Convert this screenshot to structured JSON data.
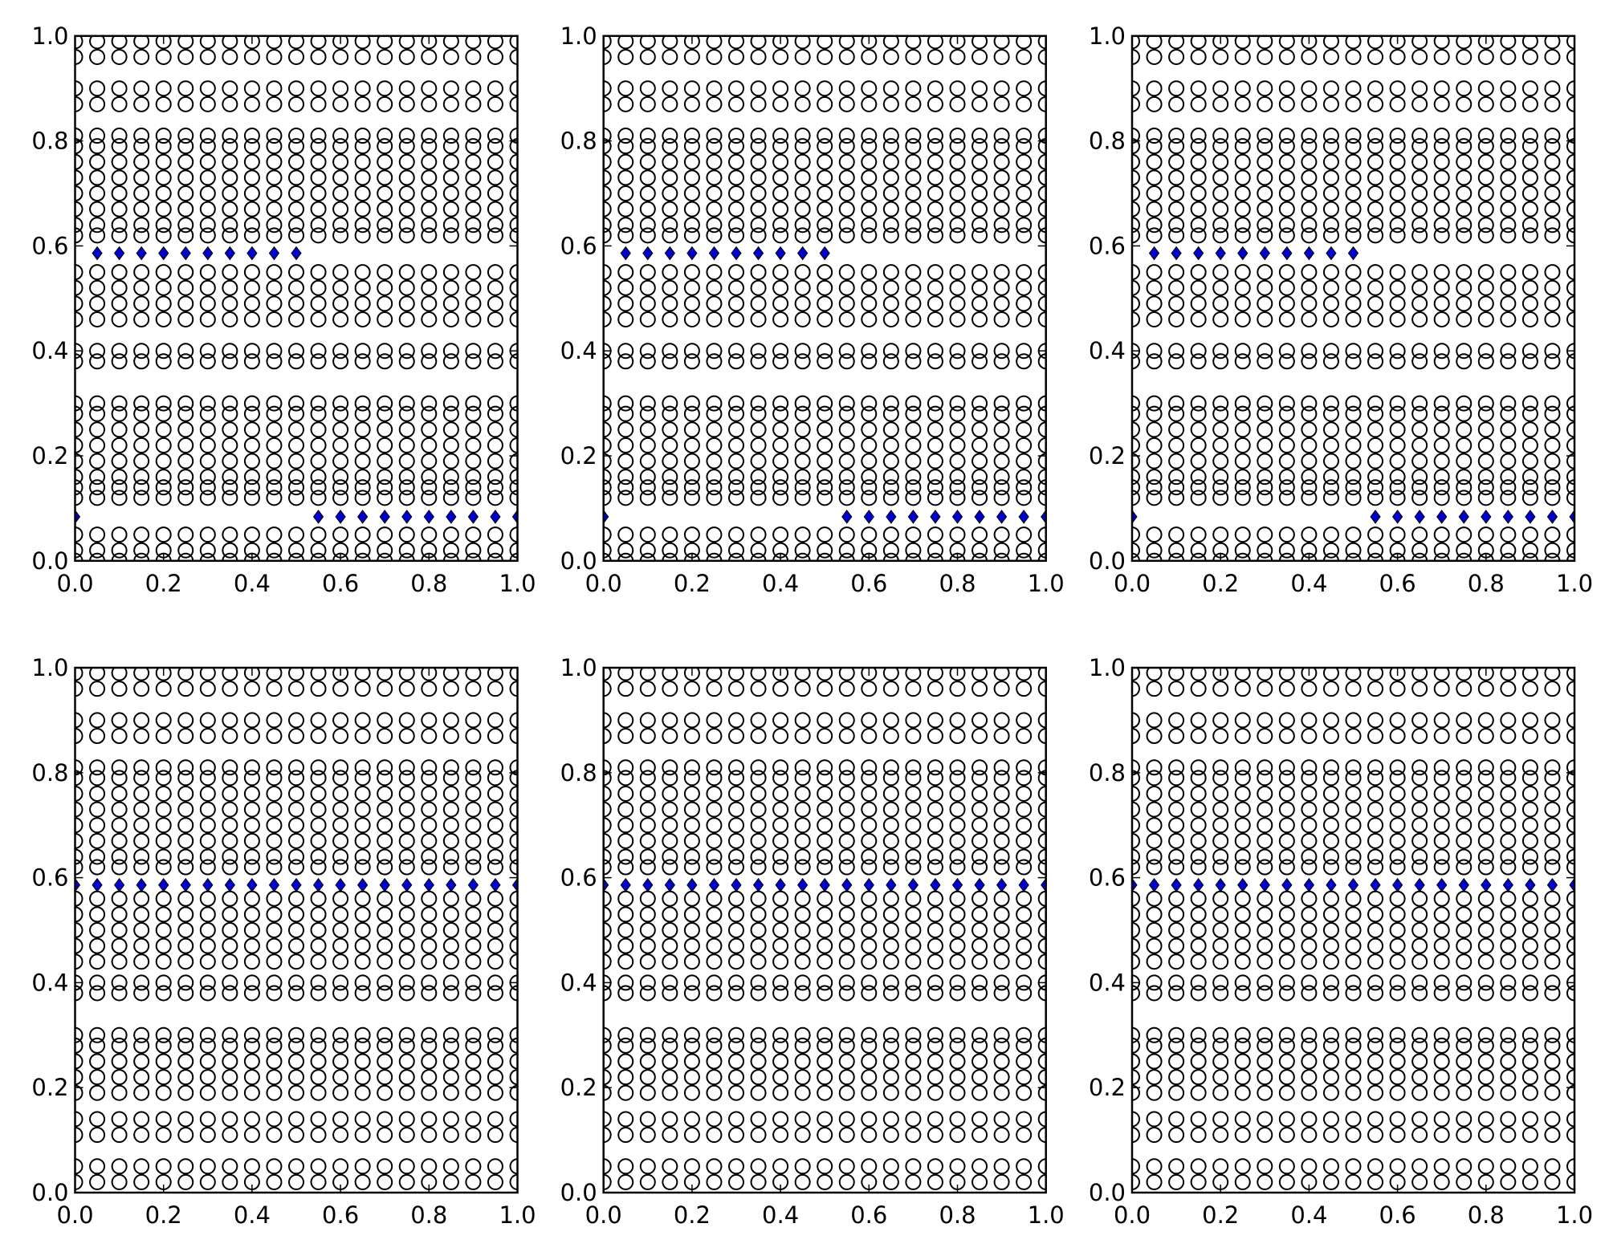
{
  "chart_data": [
    {
      "type": "scatter",
      "xlim": [
        0,
        1
      ],
      "ylim": [
        0,
        1
      ],
      "xticks": [
        {
          "value": 0,
          "label": "0.0"
        },
        {
          "value": 0.2,
          "label": "0.2"
        },
        {
          "value": 0.4,
          "label": "0.4"
        },
        {
          "value": 0.6,
          "label": "0.6"
        },
        {
          "value": 0.8,
          "label": "0.8"
        },
        {
          "value": 1,
          "label": "1.0"
        }
      ],
      "yticks": [
        {
          "value": 0,
          "label": "0.0"
        },
        {
          "value": 0.2,
          "label": "0.2"
        },
        {
          "value": 0.4,
          "label": "0.4"
        },
        {
          "value": 0.6,
          "label": "0.6"
        },
        {
          "value": 0.8,
          "label": "0.8"
        },
        {
          "value": 1,
          "label": "1.0"
        }
      ],
      "x": [
        0,
        0.05,
        0.1,
        0.15,
        0.2,
        0.25,
        0.3,
        0.35,
        0.4,
        0.45,
        0.5,
        0.55,
        0.6,
        0.65,
        0.7,
        0.75,
        0.8,
        0.85,
        0.9,
        0.95,
        1
      ],
      "rows": [
        0.99,
        0.96,
        0.9,
        0.87,
        0.81,
        0.79,
        0.76,
        0.73,
        0.7,
        0.67,
        0.64,
        0.62,
        0.55,
        0.52,
        0.49,
        0.46,
        0.4,
        0.38,
        0.3,
        0.28,
        0.25,
        0.22,
        0.19,
        0.16,
        0.14,
        0.12,
        0.05,
        0.02,
        0
      ],
      "series": [
        {
          "marker": "diamond",
          "color": "#0000cc",
          "x": [
            0.05,
            0.1,
            0.15,
            0.2,
            0.25,
            0.3,
            0.35,
            0.4,
            0.45,
            0.5,
            0,
            0.55,
            0.6,
            0.65,
            0.7,
            0.75,
            0.8,
            0.85,
            0.9,
            0.95,
            1
          ],
          "values": [
            0.586,
            0.586,
            0.586,
            0.586,
            0.586,
            0.586,
            0.586,
            0.586,
            0.586,
            0.586,
            0.084,
            0.084,
            0.084,
            0.084,
            0.084,
            0.084,
            0.084,
            0.084,
            0.084,
            0.084,
            0.084
          ]
        }
      ]
    },
    {
      "type": "scatter",
      "xlim": [
        0,
        1
      ],
      "ylim": [
        0,
        1
      ],
      "xticks": [
        {
          "value": 0,
          "label": "0.0"
        },
        {
          "value": 0.2,
          "label": "0.2"
        },
        {
          "value": 0.4,
          "label": "0.4"
        },
        {
          "value": 0.6,
          "label": "0.6"
        },
        {
          "value": 0.8,
          "label": "0.8"
        },
        {
          "value": 1,
          "label": "1.0"
        }
      ],
      "yticks": [
        {
          "value": 0,
          "label": "0.0"
        },
        {
          "value": 0.2,
          "label": "0.2"
        },
        {
          "value": 0.4,
          "label": "0.4"
        },
        {
          "value": 0.6,
          "label": "0.6"
        },
        {
          "value": 0.8,
          "label": "0.8"
        },
        {
          "value": 1,
          "label": "1.0"
        }
      ],
      "x": [
        0,
        0.05,
        0.1,
        0.15,
        0.2,
        0.25,
        0.3,
        0.35,
        0.4,
        0.45,
        0.5,
        0.55,
        0.6,
        0.65,
        0.7,
        0.75,
        0.8,
        0.85,
        0.9,
        0.95,
        1
      ],
      "rows": [
        0.99,
        0.96,
        0.9,
        0.87,
        0.81,
        0.79,
        0.76,
        0.73,
        0.7,
        0.67,
        0.64,
        0.62,
        0.55,
        0.52,
        0.49,
        0.46,
        0.4,
        0.38,
        0.3,
        0.28,
        0.25,
        0.22,
        0.19,
        0.16,
        0.14,
        0.12,
        0.05,
        0.02,
        0
      ],
      "series": [
        {
          "marker": "diamond",
          "color": "#0000cc",
          "x": [
            0.05,
            0.1,
            0.15,
            0.2,
            0.25,
            0.3,
            0.35,
            0.4,
            0.45,
            0.5,
            0,
            0.55,
            0.6,
            0.65,
            0.7,
            0.75,
            0.8,
            0.85,
            0.9,
            0.95,
            1
          ],
          "values": [
            0.586,
            0.586,
            0.586,
            0.586,
            0.586,
            0.586,
            0.586,
            0.586,
            0.586,
            0.586,
            0.084,
            0.084,
            0.084,
            0.084,
            0.084,
            0.084,
            0.084,
            0.084,
            0.084,
            0.084,
            0.084
          ]
        }
      ]
    },
    {
      "type": "scatter",
      "xlim": [
        0,
        1
      ],
      "ylim": [
        0,
        1
      ],
      "xticks": [
        {
          "value": 0,
          "label": "0.0"
        },
        {
          "value": 0.2,
          "label": "0.2"
        },
        {
          "value": 0.4,
          "label": "0.4"
        },
        {
          "value": 0.6,
          "label": "0.6"
        },
        {
          "value": 0.8,
          "label": "0.8"
        },
        {
          "value": 1,
          "label": "1.0"
        }
      ],
      "yticks": [
        {
          "value": 0,
          "label": "0.0"
        },
        {
          "value": 0.2,
          "label": "0.2"
        },
        {
          "value": 0.4,
          "label": "0.4"
        },
        {
          "value": 0.6,
          "label": "0.6"
        },
        {
          "value": 0.8,
          "label": "0.8"
        },
        {
          "value": 1,
          "label": "1.0"
        }
      ],
      "x": [
        0,
        0.05,
        0.1,
        0.15,
        0.2,
        0.25,
        0.3,
        0.35,
        0.4,
        0.45,
        0.5,
        0.55,
        0.6,
        0.65,
        0.7,
        0.75,
        0.8,
        0.85,
        0.9,
        0.95,
        1
      ],
      "rows": [
        0.99,
        0.96,
        0.9,
        0.87,
        0.81,
        0.79,
        0.76,
        0.73,
        0.7,
        0.67,
        0.64,
        0.62,
        0.55,
        0.52,
        0.49,
        0.46,
        0.4,
        0.38,
        0.3,
        0.28,
        0.25,
        0.22,
        0.19,
        0.16,
        0.14,
        0.12,
        0.05,
        0.02,
        0
      ],
      "series": [
        {
          "marker": "diamond",
          "color": "#0000cc",
          "x": [
            0.05,
            0.1,
            0.15,
            0.2,
            0.25,
            0.3,
            0.35,
            0.4,
            0.45,
            0.5,
            0,
            0.55,
            0.6,
            0.65,
            0.7,
            0.75,
            0.8,
            0.85,
            0.9,
            0.95,
            1
          ],
          "values": [
            0.586,
            0.586,
            0.586,
            0.586,
            0.586,
            0.586,
            0.586,
            0.586,
            0.586,
            0.586,
            0.084,
            0.084,
            0.084,
            0.084,
            0.084,
            0.084,
            0.084,
            0.084,
            0.084,
            0.084,
            0.084
          ]
        }
      ]
    },
    {
      "type": "scatter",
      "xlim": [
        0,
        1
      ],
      "ylim": [
        0,
        1
      ],
      "xticks": [
        {
          "value": 0,
          "label": "0.0"
        },
        {
          "value": 0.2,
          "label": "0.2"
        },
        {
          "value": 0.4,
          "label": "0.4"
        },
        {
          "value": 0.6,
          "label": "0.6"
        },
        {
          "value": 0.8,
          "label": "0.8"
        },
        {
          "value": 1,
          "label": "1.0"
        }
      ],
      "yticks": [
        {
          "value": 0,
          "label": "0.0"
        },
        {
          "value": 0.2,
          "label": "0.2"
        },
        {
          "value": 0.4,
          "label": "0.4"
        },
        {
          "value": 0.6,
          "label": "0.6"
        },
        {
          "value": 0.8,
          "label": "0.8"
        },
        {
          "value": 1,
          "label": "1.0"
        }
      ],
      "x": [
        0,
        0.05,
        0.1,
        0.15,
        0.2,
        0.25,
        0.3,
        0.35,
        0.4,
        0.45,
        0.5,
        0.55,
        0.6,
        0.65,
        0.7,
        0.75,
        0.8,
        0.85,
        0.9,
        0.95,
        1
      ],
      "rows": [
        0.99,
        0.96,
        0.9,
        0.87,
        0.81,
        0.79,
        0.76,
        0.73,
        0.7,
        0.67,
        0.64,
        0.62,
        0.56,
        0.53,
        0.5,
        0.47,
        0.44,
        0.4,
        0.38,
        0.3,
        0.28,
        0.25,
        0.22,
        0.19,
        0.14,
        0.11,
        0.05,
        0.02
      ],
      "series": [
        {
          "marker": "diamond",
          "color": "#0000cc",
          "x": [
            0,
            0.05,
            0.1,
            0.15,
            0.2,
            0.25,
            0.3,
            0.35,
            0.4,
            0.45,
            0.5,
            0.55,
            0.6,
            0.65,
            0.7,
            0.75,
            0.8,
            0.85,
            0.9,
            0.95,
            1
          ],
          "values": [
            0.586,
            0.586,
            0.586,
            0.586,
            0.586,
            0.586,
            0.586,
            0.586,
            0.586,
            0.586,
            0.586,
            0.586,
            0.586,
            0.586,
            0.586,
            0.586,
            0.586,
            0.586,
            0.586,
            0.586,
            0.586
          ]
        }
      ]
    },
    {
      "type": "scatter",
      "xlim": [
        0,
        1
      ],
      "ylim": [
        0,
        1
      ],
      "xticks": [
        {
          "value": 0,
          "label": "0.0"
        },
        {
          "value": 0.2,
          "label": "0.2"
        },
        {
          "value": 0.4,
          "label": "0.4"
        },
        {
          "value": 0.6,
          "label": "0.6"
        },
        {
          "value": 0.8,
          "label": "0.8"
        },
        {
          "value": 1,
          "label": "1.0"
        }
      ],
      "yticks": [
        {
          "value": 0,
          "label": "0.0"
        },
        {
          "value": 0.2,
          "label": "0.2"
        },
        {
          "value": 0.4,
          "label": "0.4"
        },
        {
          "value": 0.6,
          "label": "0.6"
        },
        {
          "value": 0.8,
          "label": "0.8"
        },
        {
          "value": 1,
          "label": "1.0"
        }
      ],
      "x": [
        0,
        0.05,
        0.1,
        0.15,
        0.2,
        0.25,
        0.3,
        0.35,
        0.4,
        0.45,
        0.5,
        0.55,
        0.6,
        0.65,
        0.7,
        0.75,
        0.8,
        0.85,
        0.9,
        0.95,
        1
      ],
      "rows": [
        0.99,
        0.96,
        0.9,
        0.87,
        0.81,
        0.79,
        0.76,
        0.73,
        0.7,
        0.67,
        0.64,
        0.62,
        0.56,
        0.53,
        0.5,
        0.47,
        0.44,
        0.4,
        0.38,
        0.3,
        0.28,
        0.25,
        0.22,
        0.19,
        0.14,
        0.11,
        0.05,
        0.02
      ],
      "series": [
        {
          "marker": "diamond",
          "color": "#0000cc",
          "x": [
            0,
            0.05,
            0.1,
            0.15,
            0.2,
            0.25,
            0.3,
            0.35,
            0.4,
            0.45,
            0.5,
            0.55,
            0.6,
            0.65,
            0.7,
            0.75,
            0.8,
            0.85,
            0.9,
            0.95,
            1
          ],
          "values": [
            0.586,
            0.586,
            0.586,
            0.586,
            0.586,
            0.586,
            0.586,
            0.586,
            0.586,
            0.586,
            0.586,
            0.586,
            0.586,
            0.586,
            0.586,
            0.586,
            0.586,
            0.586,
            0.586,
            0.586,
            0.586
          ]
        }
      ]
    },
    {
      "type": "scatter",
      "xlim": [
        0,
        1
      ],
      "ylim": [
        0,
        1
      ],
      "xticks": [
        {
          "value": 0,
          "label": "0.0"
        },
        {
          "value": 0.2,
          "label": "0.2"
        },
        {
          "value": 0.4,
          "label": "0.4"
        },
        {
          "value": 0.6,
          "label": "0.6"
        },
        {
          "value": 0.8,
          "label": "0.8"
        },
        {
          "value": 1,
          "label": "1.0"
        }
      ],
      "yticks": [
        {
          "value": 0,
          "label": "0.0"
        },
        {
          "value": 0.2,
          "label": "0.2"
        },
        {
          "value": 0.4,
          "label": "0.4"
        },
        {
          "value": 0.6,
          "label": "0.6"
        },
        {
          "value": 0.8,
          "label": "0.8"
        },
        {
          "value": 1,
          "label": "1.0"
        }
      ],
      "x": [
        0,
        0.05,
        0.1,
        0.15,
        0.2,
        0.25,
        0.3,
        0.35,
        0.4,
        0.45,
        0.5,
        0.55,
        0.6,
        0.65,
        0.7,
        0.75,
        0.8,
        0.85,
        0.9,
        0.95,
        1
      ],
      "rows": [
        0.99,
        0.96,
        0.9,
        0.87,
        0.81,
        0.79,
        0.76,
        0.73,
        0.7,
        0.67,
        0.64,
        0.62,
        0.56,
        0.53,
        0.5,
        0.47,
        0.44,
        0.4,
        0.38,
        0.3,
        0.28,
        0.25,
        0.22,
        0.19,
        0.14,
        0.11,
        0.05,
        0.02
      ],
      "series": [
        {
          "marker": "diamond",
          "color": "#0000cc",
          "x": [
            0,
            0.05,
            0.1,
            0.15,
            0.2,
            0.25,
            0.3,
            0.35,
            0.4,
            0.45,
            0.5,
            0.55,
            0.6,
            0.65,
            0.7,
            0.75,
            0.8,
            0.85,
            0.9,
            0.95,
            1
          ],
          "values": [
            0.586,
            0.586,
            0.586,
            0.586,
            0.586,
            0.586,
            0.586,
            0.586,
            0.586,
            0.586,
            0.586,
            0.586,
            0.586,
            0.586,
            0.586,
            0.586,
            0.586,
            0.586,
            0.586,
            0.586,
            0.586
          ]
        }
      ]
    }
  ]
}
